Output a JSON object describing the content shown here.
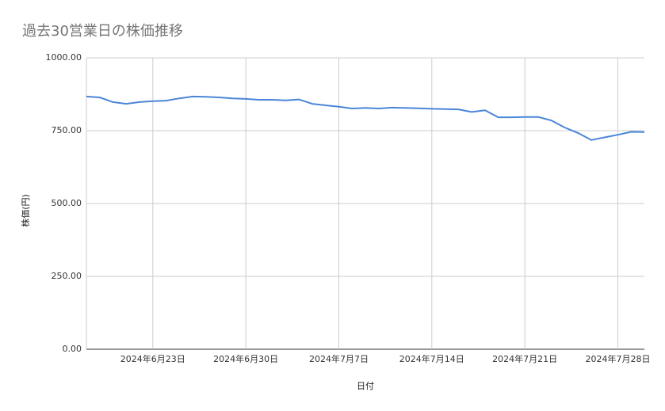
{
  "chart_data": {
    "type": "line",
    "title": "過去30営業日の株価推移",
    "x_label": "日付",
    "y_label": "株価(円)",
    "x": [
      "2024-06-18",
      "2024-06-19",
      "2024-06-20",
      "2024-06-21",
      "2024-06-22",
      "2024-06-23",
      "2024-06-24",
      "2024-06-25",
      "2024-06-26",
      "2024-06-27",
      "2024-06-28",
      "2024-06-29",
      "2024-06-30",
      "2024-07-01",
      "2024-07-02",
      "2024-07-03",
      "2024-07-04",
      "2024-07-05",
      "2024-07-06",
      "2024-07-07",
      "2024-07-08",
      "2024-07-09",
      "2024-07-10",
      "2024-07-11",
      "2024-07-12",
      "2024-07-13",
      "2024-07-14",
      "2024-07-15",
      "2024-07-16",
      "2024-07-17",
      "2024-07-18",
      "2024-07-19",
      "2024-07-20",
      "2024-07-21",
      "2024-07-22",
      "2024-07-23",
      "2024-07-24",
      "2024-07-25",
      "2024-07-26",
      "2024-07-27",
      "2024-07-28",
      "2024-07-29",
      "2024-07-30"
    ],
    "series": [
      {
        "name": "株価",
        "color": "#4a86d8",
        "values": [
          867,
          864,
          848,
          842,
          848,
          851,
          853,
          861,
          867,
          866,
          864,
          861,
          859,
          856,
          856,
          854,
          857,
          842,
          837,
          832,
          826,
          828,
          826,
          829,
          828,
          827,
          825,
          824,
          823,
          814,
          820,
          796,
          796,
          797,
          797,
          785,
          761,
          742,
          718,
          727,
          736,
          746,
          745
        ]
      }
    ],
    "xlim": [
      "2024-06-18",
      "2024-07-30"
    ],
    "xticks": [
      {
        "value": "2024-06-23",
        "label": "2024年6月23日"
      },
      {
        "value": "2024-06-30",
        "label": "2024年6月30日"
      },
      {
        "value": "2024-07-07",
        "label": "2024年7月7日"
      },
      {
        "value": "2024-07-14",
        "label": "2024年7月14日"
      },
      {
        "value": "2024-07-21",
        "label": "2024年7月21日"
      },
      {
        "value": "2024-07-28",
        "label": "2024年7月28日"
      }
    ],
    "ylim": [
      0,
      1000
    ],
    "yticks": [
      {
        "value": 0,
        "label": "0.00"
      },
      {
        "value": 250,
        "label": "250.00"
      },
      {
        "value": 500,
        "label": "500.00"
      },
      {
        "value": 750,
        "label": "750.00"
      },
      {
        "value": 1000,
        "label": "1000.00"
      }
    ],
    "grid": true
  }
}
